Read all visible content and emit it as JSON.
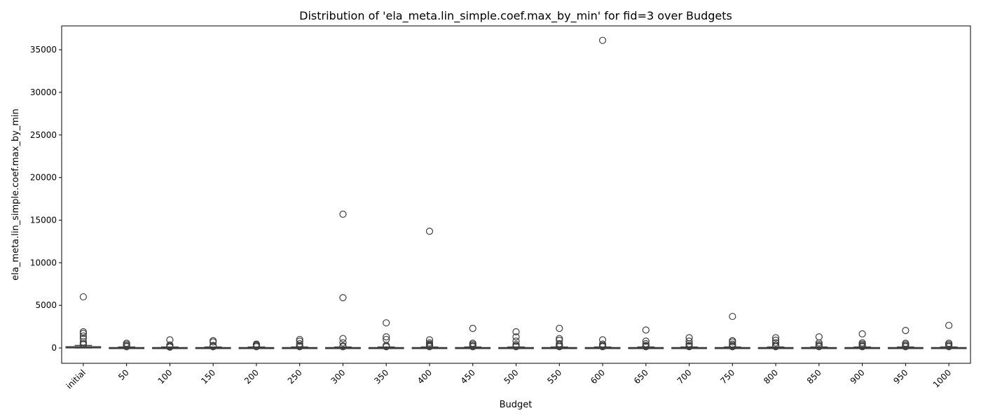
{
  "chart_data": {
    "type": "box",
    "title": "Distribution of 'ela_meta.lin_simple.coef.max_by_min' for fid=3 over Budgets",
    "xlabel": "Budget",
    "ylabel": "ela_meta.lin_simple.coef.max_by_min",
    "ylim": [
      -1800,
      37800
    ],
    "yticks": [
      0,
      5000,
      10000,
      15000,
      20000,
      25000,
      30000,
      35000
    ],
    "grid": false,
    "categories": [
      "initial",
      "50",
      "100",
      "150",
      "200",
      "250",
      "300",
      "350",
      "400",
      "450",
      "500",
      "550",
      "600",
      "650",
      "700",
      "750",
      "800",
      "850",
      "900",
      "950",
      "1000"
    ],
    "boxes": [
      {
        "q1": 10,
        "median": 60,
        "q3": 150,
        "whislo": 1,
        "whishi": 300,
        "fliers": [
          6000,
          1900,
          1700,
          1400,
          1100,
          700,
          500,
          400
        ]
      },
      {
        "q1": 5,
        "median": 20,
        "q3": 50,
        "whislo": 1,
        "whishi": 110,
        "fliers": [
          550,
          400,
          250,
          150
        ]
      },
      {
        "q1": 5,
        "median": 20,
        "q3": 50,
        "whislo": 1,
        "whishi": 110,
        "fliers": [
          950,
          350,
          200,
          150,
          100
        ]
      },
      {
        "q1": 5,
        "median": 20,
        "q3": 50,
        "whislo": 1,
        "whishi": 110,
        "fliers": [
          850,
          700,
          300,
          200,
          150
        ]
      },
      {
        "q1": 5,
        "median": 20,
        "q3": 50,
        "whislo": 1,
        "whishi": 110,
        "fliers": [
          450,
          350,
          250,
          150
        ]
      },
      {
        "q1": 5,
        "median": 20,
        "q3": 50,
        "whislo": 1,
        "whishi": 110,
        "fliers": [
          1000,
          800,
          500,
          300,
          200,
          150
        ]
      },
      {
        "q1": 5,
        "median": 20,
        "q3": 50,
        "whislo": 1,
        "whishi": 110,
        "fliers": [
          15700,
          5900,
          1100,
          600,
          250,
          150
        ]
      },
      {
        "q1": 5,
        "median": 20,
        "q3": 50,
        "whislo": 1,
        "whishi": 110,
        "fliers": [
          2950,
          1300,
          1000,
          300,
          200,
          150
        ]
      },
      {
        "q1": 5,
        "median": 20,
        "q3": 50,
        "whislo": 1,
        "whishi": 110,
        "fliers": [
          13700,
          950,
          600,
          450,
          350,
          250,
          150
        ]
      },
      {
        "q1": 5,
        "median": 20,
        "q3": 50,
        "whislo": 1,
        "whishi": 110,
        "fliers": [
          2300,
          550,
          400,
          250,
          150
        ]
      },
      {
        "q1": 5,
        "median": 20,
        "q3": 50,
        "whislo": 1,
        "whishi": 110,
        "fliers": [
          1900,
          1300,
          800,
          400,
          250,
          150
        ]
      },
      {
        "q1": 5,
        "median": 20,
        "q3": 50,
        "whislo": 1,
        "whishi": 110,
        "fliers": [
          2300,
          1100,
          900,
          500,
          350,
          200,
          150
        ]
      },
      {
        "q1": 5,
        "median": 20,
        "q3": 50,
        "whislo": 1,
        "whishi": 110,
        "fliers": [
          36100,
          950,
          450,
          300,
          200,
          150
        ]
      },
      {
        "q1": 5,
        "median": 20,
        "q3": 50,
        "whislo": 1,
        "whishi": 110,
        "fliers": [
          2100,
          800,
          500,
          300,
          200,
          150
        ]
      },
      {
        "q1": 5,
        "median": 20,
        "q3": 50,
        "whislo": 1,
        "whishi": 110,
        "fliers": [
          1200,
          800,
          500,
          300,
          200,
          150
        ]
      },
      {
        "q1": 5,
        "median": 20,
        "q3": 50,
        "whislo": 1,
        "whishi": 110,
        "fliers": [
          3700,
          850,
          700,
          450,
          300,
          200,
          150
        ]
      },
      {
        "q1": 5,
        "median": 20,
        "q3": 50,
        "whislo": 1,
        "whishi": 110,
        "fliers": [
          1200,
          900,
          600,
          350,
          200,
          150
        ]
      },
      {
        "q1": 5,
        "median": 20,
        "q3": 50,
        "whislo": 1,
        "whishi": 110,
        "fliers": [
          1300,
          600,
          400,
          250,
          150
        ]
      },
      {
        "q1": 5,
        "median": 20,
        "q3": 50,
        "whislo": 1,
        "whishi": 110,
        "fliers": [
          1650,
          600,
          450,
          300,
          200,
          150
        ]
      },
      {
        "q1": 5,
        "median": 20,
        "q3": 50,
        "whislo": 1,
        "whishi": 110,
        "fliers": [
          2050,
          550,
          400,
          250,
          150
        ]
      },
      {
        "q1": 5,
        "median": 20,
        "q3": 50,
        "whislo": 1,
        "whishi": 110,
        "fliers": [
          2650,
          550,
          400,
          250,
          150
        ]
      }
    ]
  },
  "colors": {
    "box_fill": "#3a63a6",
    "line": "#3f3f3f",
    "axis": "#000000"
  }
}
